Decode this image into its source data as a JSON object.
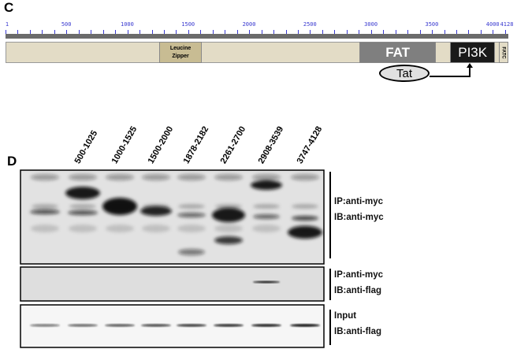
{
  "panel_c": {
    "letter": "C",
    "scale": {
      "ticks": [
        "1",
        "500",
        "1000",
        "1500",
        "2000",
        "2500",
        "3000",
        "3500",
        "4000",
        "4128"
      ],
      "min": 1,
      "max": 4128
    },
    "domains": [
      {
        "name": "Leucine Zipper",
        "line1": "Leucine",
        "line2": "Zipper",
        "start": 1265,
        "end": 1610,
        "color": "#c8bc93"
      },
      {
        "name": "FAT",
        "start": 2905,
        "end": 3535,
        "color": "#7f7f7f"
      },
      {
        "name": "PI3K",
        "start": 3650,
        "end": 4020,
        "color": "#1a1a1a"
      },
      {
        "name": "FATC",
        "start": 4050,
        "end": 4128,
        "color": "#e3dcc6"
      }
    ],
    "background_color": "#e3dcc6",
    "tat_label": "Tat"
  },
  "panel_d": {
    "letter": "D",
    "lanes": [
      "",
      "500-1025",
      "1000-1525",
      "1500-2000",
      "1878-2182",
      "2261-2700",
      "2908-3539",
      "3747-4128"
    ],
    "blots": [
      {
        "line1": "IP:anti-myc",
        "line2": "IB:anti-myc"
      },
      {
        "line1": "IP:anti-myc",
        "line2": "IB:anti-flag"
      },
      {
        "line1": "Input",
        "line2": "IB:anti-flag"
      }
    ]
  }
}
